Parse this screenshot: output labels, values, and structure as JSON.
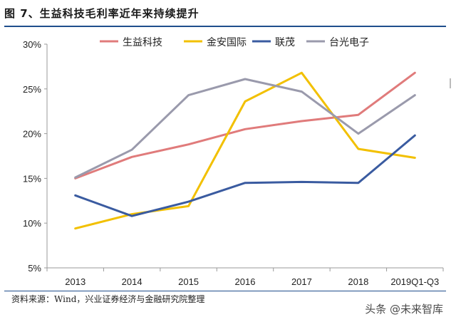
{
  "figure": {
    "title": "图 7、生益科技毛利率近年来持续提升",
    "source": "资料来源：Wind，兴业证券经济与金融研究院整理",
    "watermark": "头条 @未来智库"
  },
  "colors": {
    "rule": "#1f4e8c",
    "axis": "#999999",
    "text": "#222222"
  },
  "chart_data": {
    "type": "line",
    "title": "",
    "xlabel": "",
    "ylabel": "",
    "categories": [
      "2013",
      "2014",
      "2015",
      "2016",
      "2017",
      "2018",
      "2019Q1-Q3"
    ],
    "ylim": [
      5,
      30
    ],
    "yticks": [
      5,
      10,
      15,
      20,
      25,
      30
    ],
    "ytick_labels": [
      "5%",
      "10%",
      "15%",
      "20%",
      "25%",
      "30%"
    ],
    "grid": false,
    "legend_position": "top",
    "series": [
      {
        "name": "生益科技",
        "color": "#e07b7b",
        "values": [
          15.0,
          17.4,
          18.8,
          20.5,
          21.4,
          22.1,
          26.8
        ]
      },
      {
        "name": "金安国际",
        "color": "#f2c000",
        "values": [
          9.4,
          11.0,
          11.9,
          23.6,
          26.8,
          18.3,
          17.3
        ]
      },
      {
        "name": "联茂",
        "color": "#3a5ba0",
        "values": [
          13.1,
          10.8,
          12.4,
          14.5,
          14.6,
          14.5,
          19.8
        ]
      },
      {
        "name": "台光电子",
        "color": "#9a9aac",
        "values": [
          15.1,
          18.2,
          24.3,
          26.1,
          24.7,
          20.0,
          24.3
        ]
      }
    ]
  }
}
